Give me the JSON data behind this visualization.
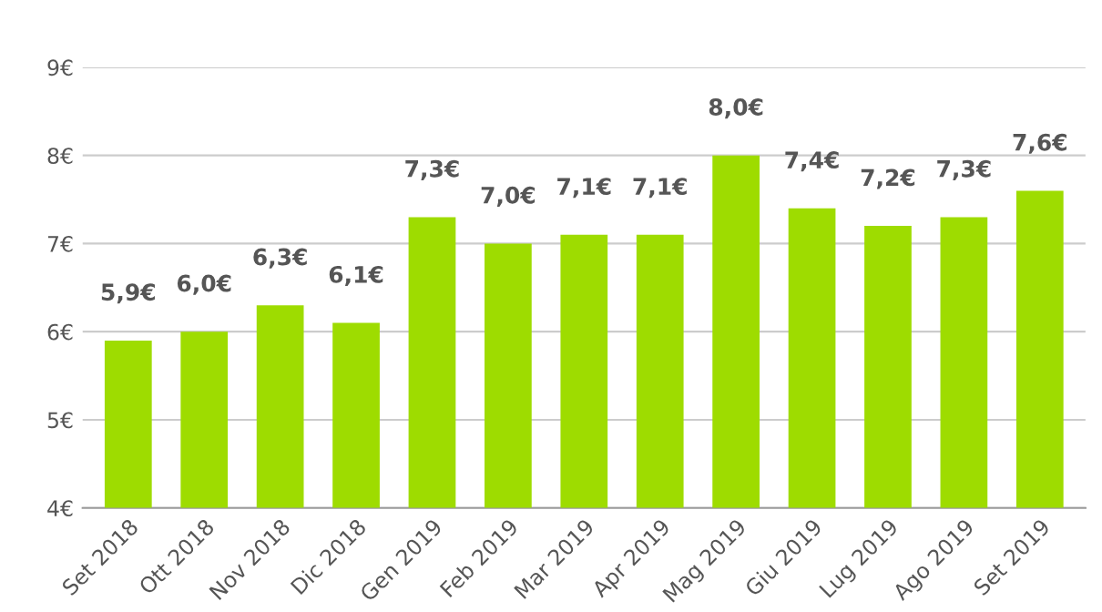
{
  "chart_data": {
    "type": "bar",
    "categories": [
      "Set 2018",
      "Ott 2018",
      "Nov 2018",
      "Dic 2018",
      "Gen 2019",
      "Feb 2019",
      "Mar 2019",
      "Apr 2019",
      "Mag 2019",
      "Giu 2019",
      "Lug 2019",
      "Ago 2019",
      "Set 2019"
    ],
    "values": [
      5.9,
      6.0,
      6.3,
      6.1,
      7.3,
      7.0,
      7.1,
      7.1,
      8.0,
      7.4,
      7.2,
      7.3,
      7.6
    ],
    "value_labels": [
      "5,9€",
      "6,0€",
      "6,3€",
      "6,1€",
      "7,3€",
      "7,0€",
      "7,1€",
      "7,1€",
      "8,0€",
      "7,4€",
      "7,2€",
      "7,3€",
      "7,6€"
    ],
    "color": "#9edc00",
    "ylim": [
      4,
      9
    ],
    "yticks": [
      {
        "value": 4,
        "label": "4€"
      },
      {
        "value": 5,
        "label": "5€"
      },
      {
        "value": 6,
        "label": "6€"
      },
      {
        "value": 7,
        "label": "7€"
      },
      {
        "value": 8,
        "label": "8€"
      },
      {
        "value": 9,
        "label": "9€"
      }
    ],
    "grid": "y",
    "legend": false
  }
}
